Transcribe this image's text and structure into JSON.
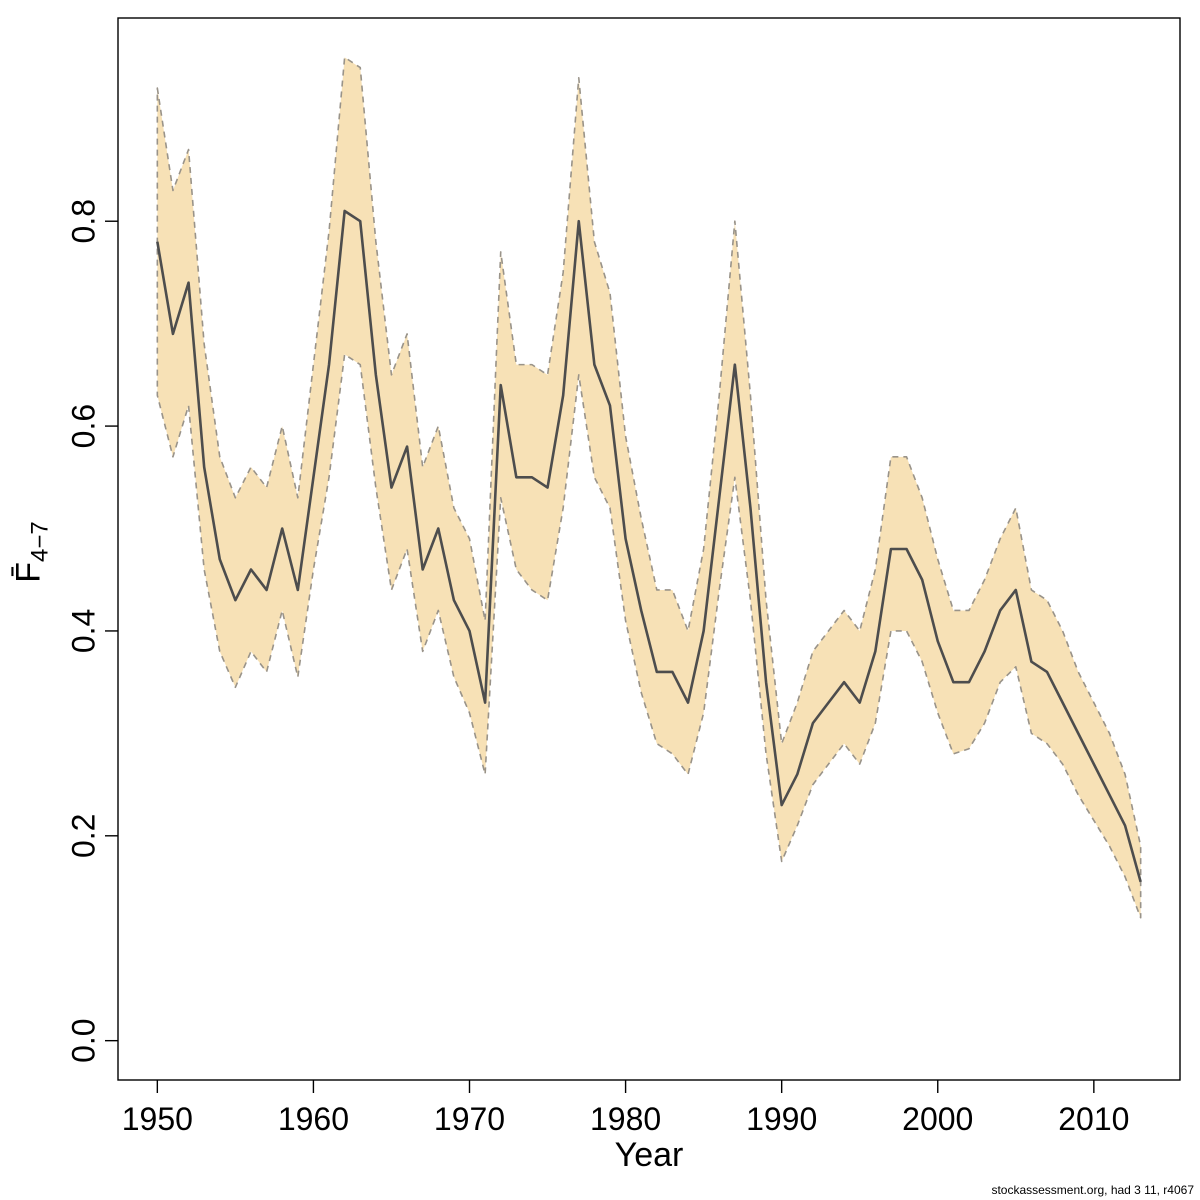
{
  "chart_data": {
    "type": "line",
    "title": "",
    "xlabel": "Year",
    "ylabel_main": "F̄",
    "ylabel_sub": "4−7",
    "x": [
      1950,
      1951,
      1952,
      1953,
      1954,
      1955,
      1956,
      1957,
      1958,
      1959,
      1960,
      1961,
      1962,
      1963,
      1964,
      1965,
      1966,
      1967,
      1968,
      1969,
      1970,
      1971,
      1972,
      1973,
      1974,
      1975,
      1976,
      1977,
      1978,
      1979,
      1980,
      1981,
      1982,
      1983,
      1984,
      1985,
      1986,
      1987,
      1988,
      1989,
      1990,
      1991,
      1992,
      1993,
      1994,
      1995,
      1996,
      1997,
      1998,
      1999,
      2000,
      2001,
      2002,
      2003,
      2004,
      2005,
      2006,
      2007,
      2008,
      2009,
      2010,
      2011,
      2012,
      2013
    ],
    "series": [
      {
        "name": "mean",
        "values": [
          0.78,
          0.69,
          0.74,
          0.56,
          0.47,
          0.43,
          0.46,
          0.44,
          0.5,
          0.44,
          0.55,
          0.66,
          0.81,
          0.8,
          0.65,
          0.54,
          0.58,
          0.46,
          0.5,
          0.43,
          0.4,
          0.33,
          0.64,
          0.55,
          0.55,
          0.54,
          0.63,
          0.8,
          0.66,
          0.62,
          0.49,
          0.42,
          0.36,
          0.36,
          0.33,
          0.4,
          0.53,
          0.66,
          0.52,
          0.35,
          0.23,
          0.26,
          0.31,
          0.33,
          0.35,
          0.33,
          0.38,
          0.48,
          0.48,
          0.45,
          0.39,
          0.35,
          0.35,
          0.38,
          0.42,
          0.44,
          0.37,
          0.36,
          0.33,
          0.3,
          0.27,
          0.24,
          0.21,
          0.155
        ]
      },
      {
        "name": "upper_ci",
        "values": [
          0.93,
          0.83,
          0.87,
          0.68,
          0.57,
          0.53,
          0.56,
          0.54,
          0.6,
          0.53,
          0.66,
          0.79,
          0.96,
          0.95,
          0.78,
          0.65,
          0.69,
          0.56,
          0.6,
          0.52,
          0.49,
          0.41,
          0.77,
          0.66,
          0.66,
          0.65,
          0.75,
          0.94,
          0.78,
          0.73,
          0.59,
          0.51,
          0.44,
          0.44,
          0.4,
          0.48,
          0.63,
          0.8,
          0.63,
          0.43,
          0.29,
          0.33,
          0.38,
          0.4,
          0.42,
          0.4,
          0.46,
          0.57,
          0.57,
          0.53,
          0.47,
          0.42,
          0.42,
          0.45,
          0.49,
          0.52,
          0.44,
          0.43,
          0.4,
          0.36,
          0.33,
          0.3,
          0.26,
          0.19
        ]
      },
      {
        "name": "lower_ci",
        "values": [
          0.63,
          0.57,
          0.62,
          0.46,
          0.38,
          0.345,
          0.38,
          0.36,
          0.42,
          0.355,
          0.46,
          0.55,
          0.67,
          0.66,
          0.54,
          0.44,
          0.48,
          0.38,
          0.42,
          0.355,
          0.32,
          0.26,
          0.53,
          0.46,
          0.44,
          0.43,
          0.52,
          0.65,
          0.55,
          0.52,
          0.41,
          0.34,
          0.29,
          0.28,
          0.26,
          0.32,
          0.44,
          0.55,
          0.43,
          0.28,
          0.175,
          0.21,
          0.25,
          0.27,
          0.29,
          0.27,
          0.31,
          0.4,
          0.4,
          0.37,
          0.32,
          0.28,
          0.285,
          0.31,
          0.35,
          0.365,
          0.3,
          0.29,
          0.27,
          0.24,
          0.215,
          0.19,
          0.16,
          0.12
        ]
      }
    ],
    "xlim": [
      1950,
      2013
    ],
    "ylim": [
      0,
      0.96
    ],
    "xticks": [
      1950,
      1960,
      1970,
      1980,
      1990,
      2000,
      2010
    ],
    "yticks": [
      0,
      0.2,
      0.4,
      0.6,
      0.8
    ],
    "ytick_labels": [
      "0.0",
      "0.2",
      "0.4",
      "0.6",
      "0.8"
    ],
    "grid": false,
    "legend": "none",
    "band_style": "dashed",
    "colors": {
      "band": "#F7E1B6",
      "band_border": "#999389",
      "line": "#4D4D4D",
      "axis": "#000000"
    }
  },
  "watermark": "stockassessment.org, had 3 11, r4067"
}
